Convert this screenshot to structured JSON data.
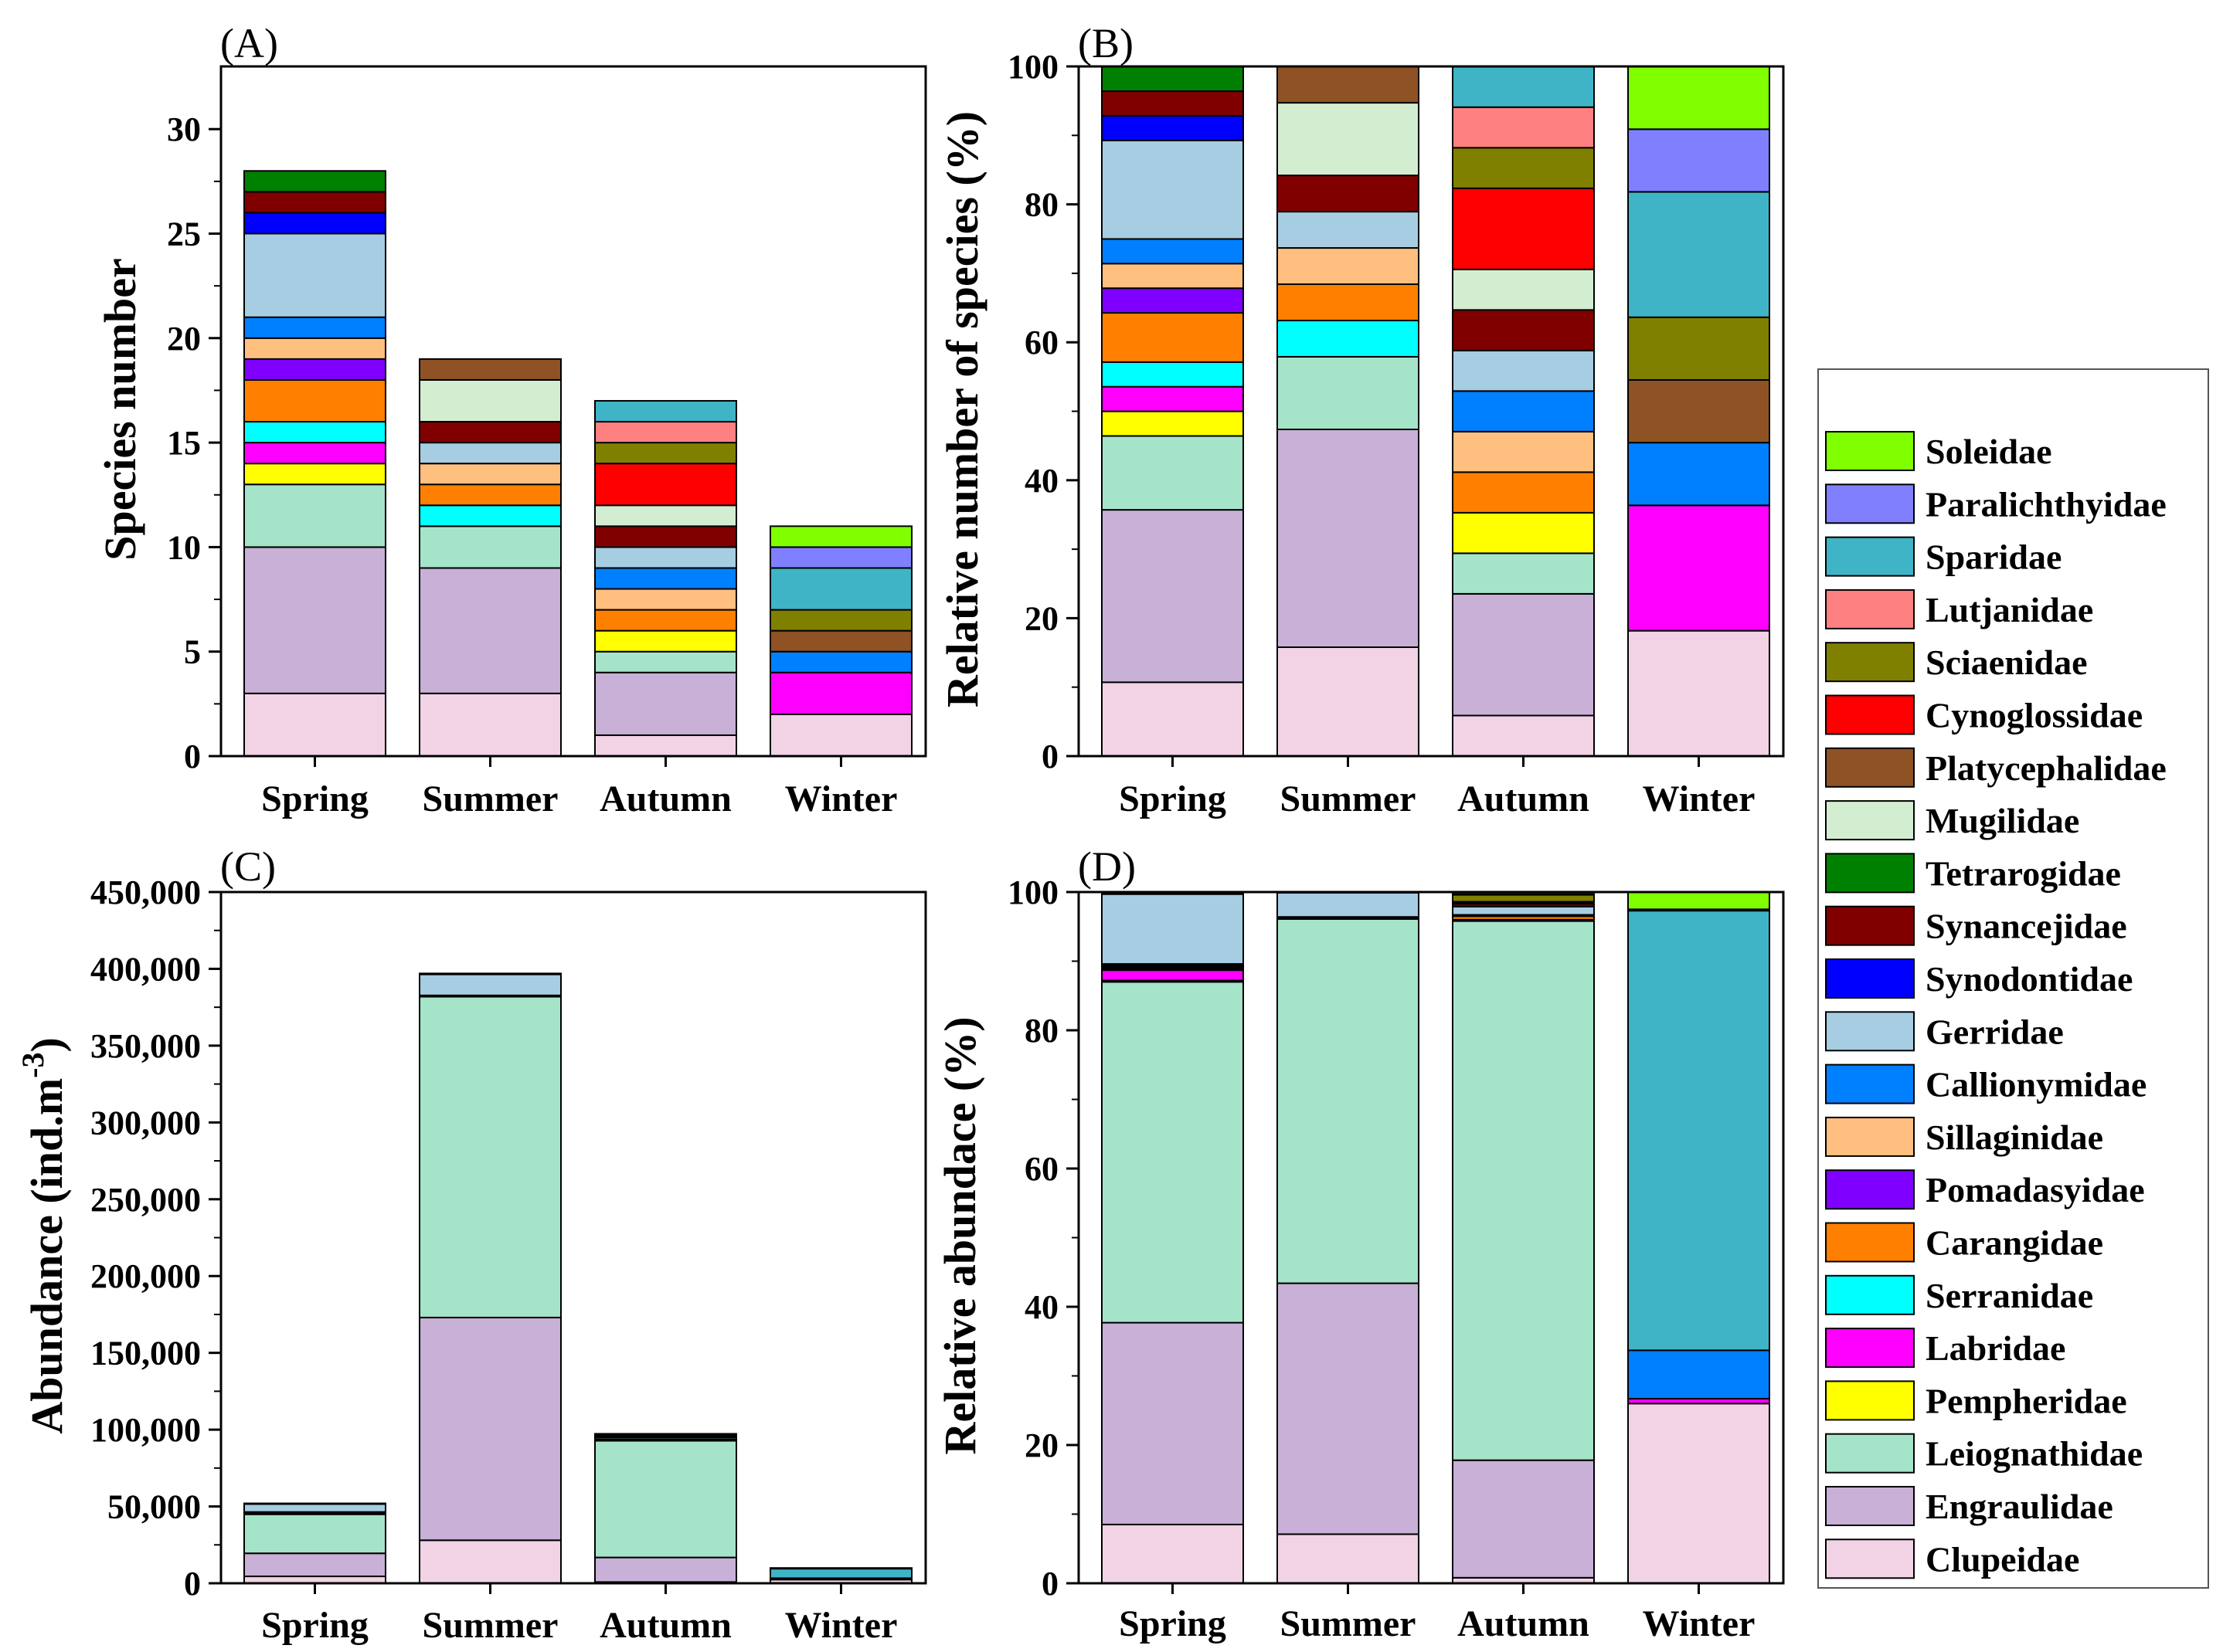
{
  "families": [
    {
      "name": "Clupeidae",
      "color": "#F2D3E6"
    },
    {
      "name": "Engraulidae",
      "color": "#C8B0D6"
    },
    {
      "name": "Leiognathidae",
      "color": "#A6E4CA"
    },
    {
      "name": "Pempheridae",
      "color": "#FFFF00"
    },
    {
      "name": "Labridae",
      "color": "#FF00FF"
    },
    {
      "name": "Serranidae",
      "color": "#00FFFF"
    },
    {
      "name": "Carangidae",
      "color": "#FF8000"
    },
    {
      "name": "Pomadasyidae",
      "color": "#8000FF"
    },
    {
      "name": "Sillaginidae",
      "color": "#FFBF7F"
    },
    {
      "name": "Callionymidae",
      "color": "#0080FF"
    },
    {
      "name": "Gerridae",
      "color": "#A6CDE2"
    },
    {
      "name": "Synodontidae",
      "color": "#0000FF"
    },
    {
      "name": "Synancejidae",
      "color": "#800000"
    },
    {
      "name": "Tetrarogidae",
      "color": "#008000"
    },
    {
      "name": "Mugilidae",
      "color": "#D3EDD0"
    },
    {
      "name": "Platycephalidae",
      "color": "#8F5224"
    },
    {
      "name": "Cynoglossidae",
      "color": "#FF0000"
    },
    {
      "name": "Sciaenidae",
      "color": "#808000"
    },
    {
      "name": "Lutjanidae",
      "color": "#FF8080"
    },
    {
      "name": "Sparidae",
      "color": "#3FB4C6"
    },
    {
      "name": "Paralichthyidae",
      "color": "#8080FF"
    },
    {
      "name": "Soleidae",
      "color": "#80FF00"
    }
  ],
  "chart_data": [
    {
      "type": "bar",
      "stacked": true,
      "panel": "(A)",
      "ylabel": "Species number",
      "xlabel": "",
      "ylim": [
        0,
        33
      ],
      "yticks": [
        0,
        5,
        10,
        15,
        20,
        25,
        30
      ],
      "ytick_labels": [
        "0",
        "5",
        "10",
        "15",
        "20",
        "25",
        "30"
      ],
      "categories": [
        "Spring",
        "Summer",
        "Autumn",
        "Winter"
      ],
      "series": [
        {
          "name": "Clupeidae",
          "values": [
            3,
            3,
            1,
            2
          ]
        },
        {
          "name": "Engraulidae",
          "values": [
            7,
            6,
            3,
            0
          ]
        },
        {
          "name": "Leiognathidae",
          "values": [
            3,
            2,
            1,
            0
          ]
        },
        {
          "name": "Pempheridae",
          "values": [
            1,
            0,
            1,
            0
          ]
        },
        {
          "name": "Labridae",
          "values": [
            1,
            0,
            0,
            2
          ]
        },
        {
          "name": "Serranidae",
          "values": [
            1,
            1,
            0,
            0
          ]
        },
        {
          "name": "Carangidae",
          "values": [
            2,
            1,
            1,
            0
          ]
        },
        {
          "name": "Pomadasyidae",
          "values": [
            1,
            0,
            0,
            0
          ]
        },
        {
          "name": "Sillaginidae",
          "values": [
            1,
            1,
            1,
            0
          ]
        },
        {
          "name": "Callionymidae",
          "values": [
            1,
            0,
            1,
            1
          ]
        },
        {
          "name": "Gerridae",
          "values": [
            4,
            1,
            1,
            0
          ]
        },
        {
          "name": "Synodontidae",
          "values": [
            1,
            0,
            0,
            0
          ]
        },
        {
          "name": "Synancejidae",
          "values": [
            1,
            1,
            1,
            0
          ]
        },
        {
          "name": "Tetrarogidae",
          "values": [
            1,
            0,
            0,
            0
          ]
        },
        {
          "name": "Mugilidae",
          "values": [
            0,
            2,
            1,
            0
          ]
        },
        {
          "name": "Platycephalidae",
          "values": [
            0,
            1,
            0,
            1
          ]
        },
        {
          "name": "Cynoglossidae",
          "values": [
            0,
            0,
            2,
            0
          ]
        },
        {
          "name": "Sciaenidae",
          "values": [
            0,
            0,
            1,
            1
          ]
        },
        {
          "name": "Lutjanidae",
          "values": [
            0,
            0,
            1,
            0
          ]
        },
        {
          "name": "Sparidae",
          "values": [
            0,
            0,
            1,
            2
          ]
        },
        {
          "name": "Paralichthyidae",
          "values": [
            0,
            0,
            0,
            1
          ]
        },
        {
          "name": "Soleidae",
          "values": [
            0,
            0,
            0,
            1
          ]
        }
      ]
    },
    {
      "type": "bar",
      "stacked": true,
      "panel": "(B)",
      "ylabel": "Relative number of species (%)",
      "xlabel": "",
      "ylim": [
        0,
        100
      ],
      "yticks": [
        0,
        20,
        40,
        60,
        80,
        100
      ],
      "ytick_labels": [
        "0",
        "20",
        "40",
        "60",
        "80",
        "100"
      ],
      "categories": [
        "Spring",
        "Summer",
        "Autumn",
        "Winter"
      ],
      "series": [
        {
          "name": "Clupeidae",
          "values": [
            10.71,
            15.79,
            5.88,
            18.18
          ]
        },
        {
          "name": "Engraulidae",
          "values": [
            25.0,
            31.58,
            17.65,
            0
          ]
        },
        {
          "name": "Leiognathidae",
          "values": [
            10.71,
            10.53,
            5.88,
            0
          ]
        },
        {
          "name": "Pempheridae",
          "values": [
            3.57,
            0,
            5.88,
            0
          ]
        },
        {
          "name": "Labridae",
          "values": [
            3.57,
            0,
            0,
            18.18
          ]
        },
        {
          "name": "Serranidae",
          "values": [
            3.57,
            5.26,
            0,
            0
          ]
        },
        {
          "name": "Carangidae",
          "values": [
            7.14,
            5.26,
            5.88,
            0
          ]
        },
        {
          "name": "Pomadasyidae",
          "values": [
            3.57,
            0,
            0,
            0
          ]
        },
        {
          "name": "Sillaginidae",
          "values": [
            3.57,
            5.26,
            5.88,
            0
          ]
        },
        {
          "name": "Callionymidae",
          "values": [
            3.57,
            0,
            5.88,
            9.09
          ]
        },
        {
          "name": "Gerridae",
          "values": [
            14.29,
            5.26,
            5.88,
            0
          ]
        },
        {
          "name": "Synodontidae",
          "values": [
            3.57,
            0,
            0,
            0
          ]
        },
        {
          "name": "Synancejidae",
          "values": [
            3.57,
            5.26,
            5.88,
            0
          ]
        },
        {
          "name": "Tetrarogidae",
          "values": [
            3.57,
            0,
            0,
            0
          ]
        },
        {
          "name": "Mugilidae",
          "values": [
            0,
            10.53,
            5.88,
            0
          ]
        },
        {
          "name": "Platycephalidae",
          "values": [
            0,
            5.26,
            0,
            9.09
          ]
        },
        {
          "name": "Cynoglossidae",
          "values": [
            0,
            0,
            11.76,
            0
          ]
        },
        {
          "name": "Sciaenidae",
          "values": [
            0,
            0,
            5.88,
            9.09
          ]
        },
        {
          "name": "Lutjanidae",
          "values": [
            0,
            0,
            5.88,
            0
          ]
        },
        {
          "name": "Sparidae",
          "values": [
            0,
            0,
            5.88,
            18.18
          ]
        },
        {
          "name": "Paralichthyidae",
          "values": [
            0,
            0,
            0,
            9.09
          ]
        },
        {
          "name": "Soleidae",
          "values": [
            0,
            0,
            0,
            9.09
          ]
        }
      ]
    },
    {
      "type": "bar",
      "stacked": true,
      "panel": "(C)",
      "ylabel_parts": [
        "Abundance (ind.m",
        "-3",
        ")"
      ],
      "xlabel": "",
      "ylim": [
        0,
        450000
      ],
      "yticks": [
        0,
        50000,
        100000,
        150000,
        200000,
        250000,
        300000,
        350000,
        400000,
        450000
      ],
      "ytick_labels": [
        "0",
        "50,000",
        "100,000",
        "150,000",
        "200,000",
        "250,000",
        "300,000",
        "350,000",
        "400,000",
        "450,000"
      ],
      "categories": [
        "Spring",
        "Summer",
        "Autumn",
        "Winter"
      ],
      "series": [
        {
          "name": "Clupeidae",
          "values": [
            4500,
            28000,
            800,
            2500
          ]
        },
        {
          "name": "Engraulidae",
          "values": [
            15000,
            145000,
            16000,
            0
          ]
        },
        {
          "name": "Leiognathidae",
          "values": [
            25500,
            209000,
            76000,
            0
          ]
        },
        {
          "name": "Pempheridae",
          "values": [
            100,
            0,
            200,
            0
          ]
        },
        {
          "name": "Labridae",
          "values": [
            800,
            0,
            0,
            100
          ]
        },
        {
          "name": "Serranidae",
          "values": [
            100,
            100,
            0,
            0
          ]
        },
        {
          "name": "Carangidae",
          "values": [
            100,
            500,
            500,
            0
          ]
        },
        {
          "name": "Pomadasyidae",
          "values": [
            100,
            0,
            0,
            0
          ]
        },
        {
          "name": "Sillaginidae",
          "values": [
            100,
            100,
            100,
            0
          ]
        },
        {
          "name": "Callionymidae",
          "values": [
            100,
            0,
            100,
            700
          ]
        },
        {
          "name": "Gerridae",
          "values": [
            5300,
            13700,
            1200,
            0
          ]
        },
        {
          "name": "Synodontidae",
          "values": [
            100,
            0,
            0,
            0
          ]
        },
        {
          "name": "Synancejidae",
          "values": [
            100,
            300,
            500,
            0
          ]
        },
        {
          "name": "Tetrarogidae",
          "values": [
            100,
            0,
            0,
            0
          ]
        },
        {
          "name": "Mugilidae",
          "values": [
            0,
            100,
            200,
            0
          ]
        },
        {
          "name": "Platycephalidae",
          "values": [
            0,
            200,
            0,
            0
          ]
        },
        {
          "name": "Cynoglossidae",
          "values": [
            0,
            0,
            100,
            0
          ]
        },
        {
          "name": "Sciaenidae",
          "values": [
            0,
            0,
            1000,
            0
          ]
        },
        {
          "name": "Lutjanidae",
          "values": [
            0,
            0,
            100,
            0
          ]
        },
        {
          "name": "Sparidae",
          "values": [
            0,
            0,
            500,
            6300
          ]
        },
        {
          "name": "Paralichthyidae",
          "values": [
            0,
            0,
            0,
            100
          ]
        },
        {
          "name": "Soleidae",
          "values": [
            0,
            0,
            0,
            250
          ]
        }
      ]
    },
    {
      "type": "bar",
      "stacked": true,
      "panel": "(D)",
      "ylabel": "Relative abundace (%)",
      "xlabel": "",
      "ylim": [
        0,
        100
      ],
      "yticks": [
        0,
        20,
        40,
        60,
        80,
        100
      ],
      "ytick_labels": [
        "0",
        "20",
        "40",
        "60",
        "80",
        "100"
      ],
      "categories": [
        "Spring",
        "Summer",
        "Autumn",
        "Winter"
      ],
      "series": [
        {
          "name": "Clupeidae",
          "values": [
            8.5,
            7.1,
            0.8,
            26.0
          ]
        },
        {
          "name": "Engraulidae",
          "values": [
            29.2,
            36.3,
            17.0,
            0
          ]
        },
        {
          "name": "Leiognathidae",
          "values": [
            49.3,
            52.7,
            78.0,
            0
          ]
        },
        {
          "name": "Pempheridae",
          "values": [
            0.2,
            0,
            0.2,
            0
          ]
        },
        {
          "name": "Labridae",
          "values": [
            1.5,
            0,
            0,
            0.7
          ]
        },
        {
          "name": "Serranidae",
          "values": [
            0.2,
            0.1,
            0,
            0
          ]
        },
        {
          "name": "Carangidae",
          "values": [
            0.2,
            0.1,
            0.5,
            0
          ]
        },
        {
          "name": "Pomadasyidae",
          "values": [
            0.2,
            0,
            0,
            0
          ]
        },
        {
          "name": "Sillaginidae",
          "values": [
            0.2,
            0.1,
            0.1,
            0
          ]
        },
        {
          "name": "Callionymidae",
          "values": [
            0.1,
            0,
            0.1,
            7.0
          ]
        },
        {
          "name": "Gerridae",
          "values": [
            10.1,
            3.5,
            1.2,
            0
          ]
        },
        {
          "name": "Synodontidae",
          "values": [
            0.1,
            0,
            0,
            0
          ]
        },
        {
          "name": "Synancejidae",
          "values": [
            0.1,
            0.1,
            0.4,
            0
          ]
        },
        {
          "name": "Tetrarogidae",
          "values": [
            0.1,
            0,
            0,
            0
          ]
        },
        {
          "name": "Mugilidae",
          "values": [
            0,
            0,
            0.2,
            0
          ]
        },
        {
          "name": "Platycephalidae",
          "values": [
            0,
            0,
            0,
            0
          ]
        },
        {
          "name": "Cynoglossidae",
          "values": [
            0,
            0,
            0.1,
            0
          ]
        },
        {
          "name": "Sciaenidae",
          "values": [
            0,
            0,
            1.0,
            0
          ]
        },
        {
          "name": "Lutjanidae",
          "values": [
            0,
            0,
            0.1,
            0
          ]
        },
        {
          "name": "Sparidae",
          "values": [
            0,
            0,
            0.3,
            63.6
          ]
        },
        {
          "name": "Paralichthyidae",
          "values": [
            0,
            0,
            0,
            0.2
          ]
        },
        {
          "name": "Soleidae",
          "values": [
            0,
            0,
            0,
            2.5
          ]
        }
      ]
    }
  ]
}
